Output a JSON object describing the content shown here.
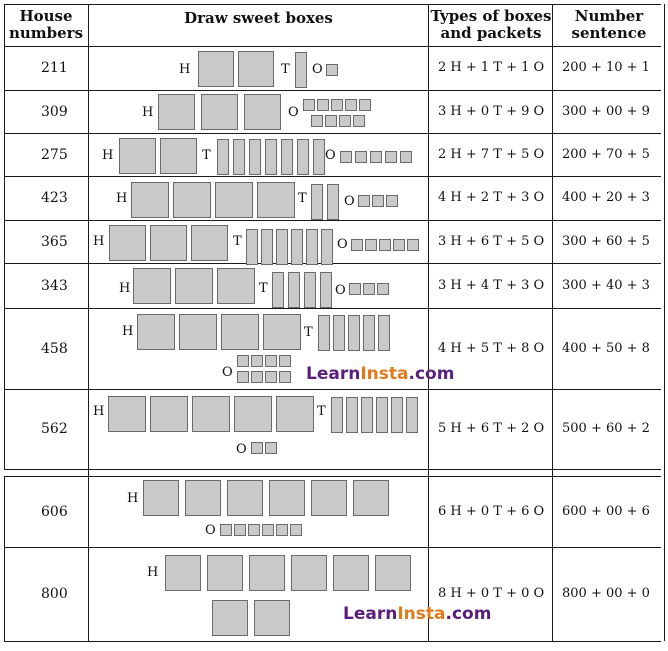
{
  "headers": {
    "col1": "House numbers",
    "col2": "Draw sweet boxes",
    "col3": "Types of boxes and packets",
    "col4": "Number sentence"
  },
  "labels": {
    "hundreds": "H",
    "tens": "T",
    "ones": "O"
  },
  "watermark": {
    "part1": "Learn",
    "part2": "Insta",
    "part3": ".com"
  },
  "rows": [
    {
      "house": "211",
      "hundreds": 2,
      "tens": 1,
      "ones": 1,
      "types": "2 H + 1 T + 1 O",
      "sentence": "200 + 10 + 1"
    },
    {
      "house": "309",
      "hundreds": 3,
      "tens": 0,
      "ones": 9,
      "types": "3 H + 0 T + 9 O",
      "sentence": "300 + 00 + 9"
    },
    {
      "house": "275",
      "hundreds": 2,
      "tens": 7,
      "ones": 5,
      "types": "2 H + 7 T + 5 O",
      "sentence": "200 + 70 + 5"
    },
    {
      "house": "423",
      "hundreds": 4,
      "tens": 2,
      "ones": 3,
      "types": "4 H + 2 T + 3 O",
      "sentence": "400 + 20 + 3"
    },
    {
      "house": "365",
      "hundreds": 3,
      "tens": 6,
      "ones": 5,
      "types": "3 H + 6 T + 5 O",
      "sentence": "300 + 60 + 5"
    },
    {
      "house": "343",
      "hundreds": 3,
      "tens": 4,
      "ones": 3,
      "types": "3 H + 4 T + 3 O",
      "sentence": "300 + 40 + 3"
    },
    {
      "house": "458",
      "hundreds": 4,
      "tens": 5,
      "ones": 8,
      "types": "4 H + 5 T + 8 O",
      "sentence": "400 + 50 + 8"
    },
    {
      "house": "562",
      "hundreds": 5,
      "tens": 6,
      "ones": 2,
      "types": "5 H + 6 T + 2 O",
      "sentence": "500 + 60 + 2"
    },
    {
      "house": "606",
      "hundreds": 6,
      "tens": 0,
      "ones": 6,
      "types": "6 H + 0 T + 6 O",
      "sentence": "600 + 00 + 6"
    },
    {
      "house": "800",
      "hundreds": 8,
      "tens": 0,
      "ones": 0,
      "types": "8 H + 0 T + 0 O",
      "sentence": "800 + 00 + 0"
    }
  ]
}
